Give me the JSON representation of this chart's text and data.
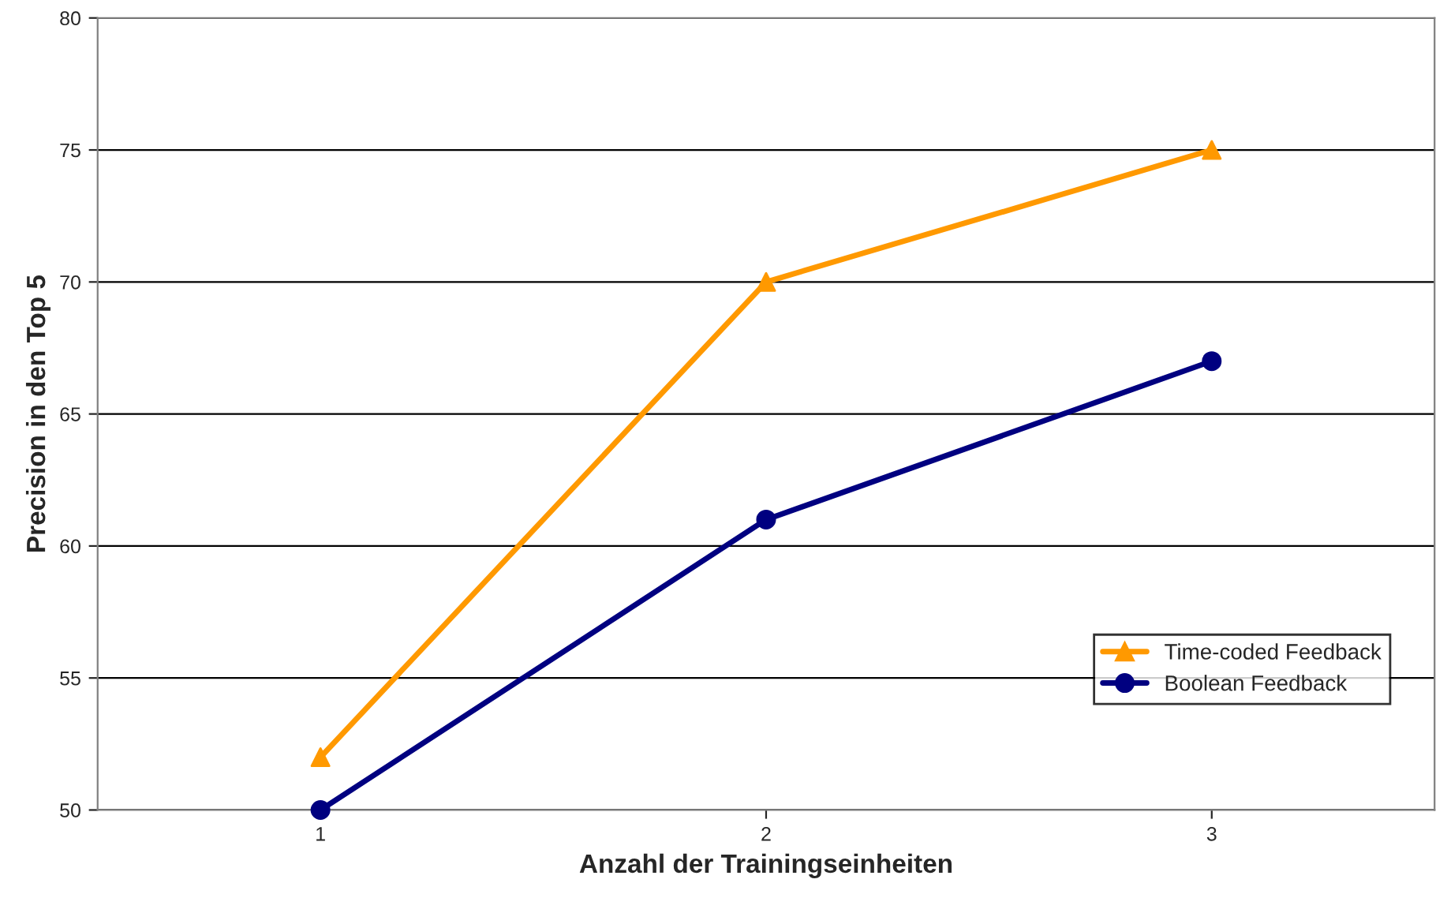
{
  "chart_data": {
    "type": "line",
    "xlabel": "Anzahl der Trainingseinheiten",
    "ylabel": "Precision in den Top 5",
    "x": [
      1,
      2,
      3
    ],
    "xlim": [
      0.5,
      3.5
    ],
    "xticks": [
      1,
      2,
      3
    ],
    "series": [
      {
        "name": "Time-coded Feedback",
        "color": "#ff9900",
        "values": [
          52,
          70,
          75
        ],
        "marker": "triangle"
      },
      {
        "name": "Boolean Feedback",
        "color": "#000080",
        "values": [
          50,
          61,
          67
        ],
        "marker": "circle"
      }
    ],
    "ylim": [
      50,
      80
    ],
    "yticks": [
      50,
      55,
      60,
      65,
      70,
      75,
      80
    ],
    "grid": "y",
    "legend": "bottom right",
    "line_style": "solid"
  }
}
